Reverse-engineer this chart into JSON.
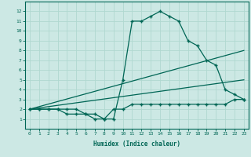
{
  "xlabel": "Humidex (Indice chaleur)",
  "background_color": "#cce8e4",
  "grid_color": "#b0d8d0",
  "line_color": "#006655",
  "x_values": [
    0,
    1,
    2,
    3,
    4,
    5,
    6,
    7,
    8,
    9,
    10,
    11,
    12,
    13,
    14,
    15,
    16,
    17,
    18,
    19,
    20,
    21,
    22,
    23
  ],
  "series1": [
    2,
    2,
    2,
    2,
    2,
    2,
    1.5,
    1.5,
    1,
    1,
    5,
    11,
    11,
    11.5,
    12,
    11.5,
    11,
    9,
    8.5,
    7,
    6.5,
    4,
    3.5,
    3
  ],
  "series2": [
    2,
    2,
    2,
    2,
    1.5,
    1.5,
    1.5,
    1,
    1,
    2,
    2,
    2.5,
    2.5,
    2.5,
    2.5,
    2.5,
    2.5,
    2.5,
    2.5,
    2.5,
    2.5,
    2.5,
    3,
    3
  ],
  "line3": [
    [
      0,
      2
    ],
    [
      23,
      8
    ]
  ],
  "line4": [
    [
      0,
      2
    ],
    [
      23,
      5
    ]
  ],
  "ylim": [
    0,
    13
  ],
  "xlim": [
    -0.5,
    23.5
  ],
  "yticks": [
    1,
    2,
    3,
    4,
    5,
    6,
    7,
    8,
    9,
    10,
    11,
    12
  ],
  "xticks": [
    0,
    1,
    2,
    3,
    4,
    5,
    6,
    7,
    8,
    9,
    10,
    11,
    12,
    13,
    14,
    15,
    16,
    17,
    18,
    19,
    20,
    21,
    22,
    23
  ]
}
